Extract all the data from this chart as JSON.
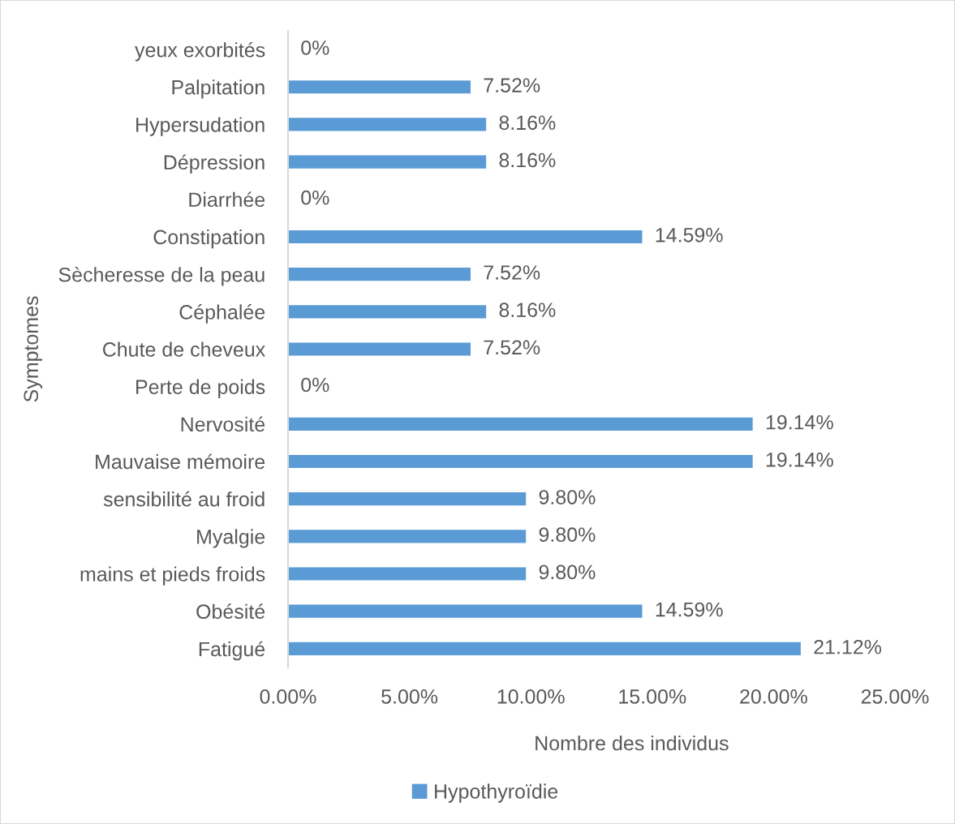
{
  "chart_data": {
    "type": "bar",
    "orientation": "horizontal",
    "categories": [
      "yeux exorbités",
      "Palpitation",
      "Hypersudation",
      "Dépression",
      "Diarrhée",
      "Constipation",
      "Sècheresse de la peau",
      "Céphalée",
      "Chute de cheveux",
      "Perte de poids",
      "Nervosité",
      "Mauvaise mémoire",
      "sensibilité au froid",
      "Myalgie",
      "mains et pieds froids",
      "Obésité",
      "Fatigué"
    ],
    "series": [
      {
        "name": "Hypothyroïdie",
        "color": "#5b9bd5",
        "values": [
          0,
          7.52,
          8.16,
          8.16,
          0,
          14.59,
          7.52,
          8.16,
          7.52,
          0,
          19.14,
          19.14,
          9.8,
          9.8,
          9.8,
          14.59,
          21.12
        ],
        "value_labels": [
          "0%",
          "7.52%",
          "8.16%",
          "8.16%",
          "0%",
          "14.59%",
          "7.52%",
          "8.16%",
          "7.52%",
          "0%",
          "19.14%",
          "19.14%",
          "9.80%",
          "9.80%",
          "9.80%",
          "14.59%",
          "21.12%"
        ]
      }
    ],
    "xlim": [
      0,
      25
    ],
    "xticks": [
      {
        "value": 0,
        "label": "0.00%"
      },
      {
        "value": 5,
        "label": "5.00%"
      },
      {
        "value": 10,
        "label": "10.00%"
      },
      {
        "value": 15,
        "label": "15.00%"
      },
      {
        "value": 20,
        "label": "20.00%"
      },
      {
        "value": 25,
        "label": "25.00%"
      }
    ],
    "xlabel": "Nombre des individus",
    "ylabel": "Symptomes",
    "legend": "bottom"
  }
}
